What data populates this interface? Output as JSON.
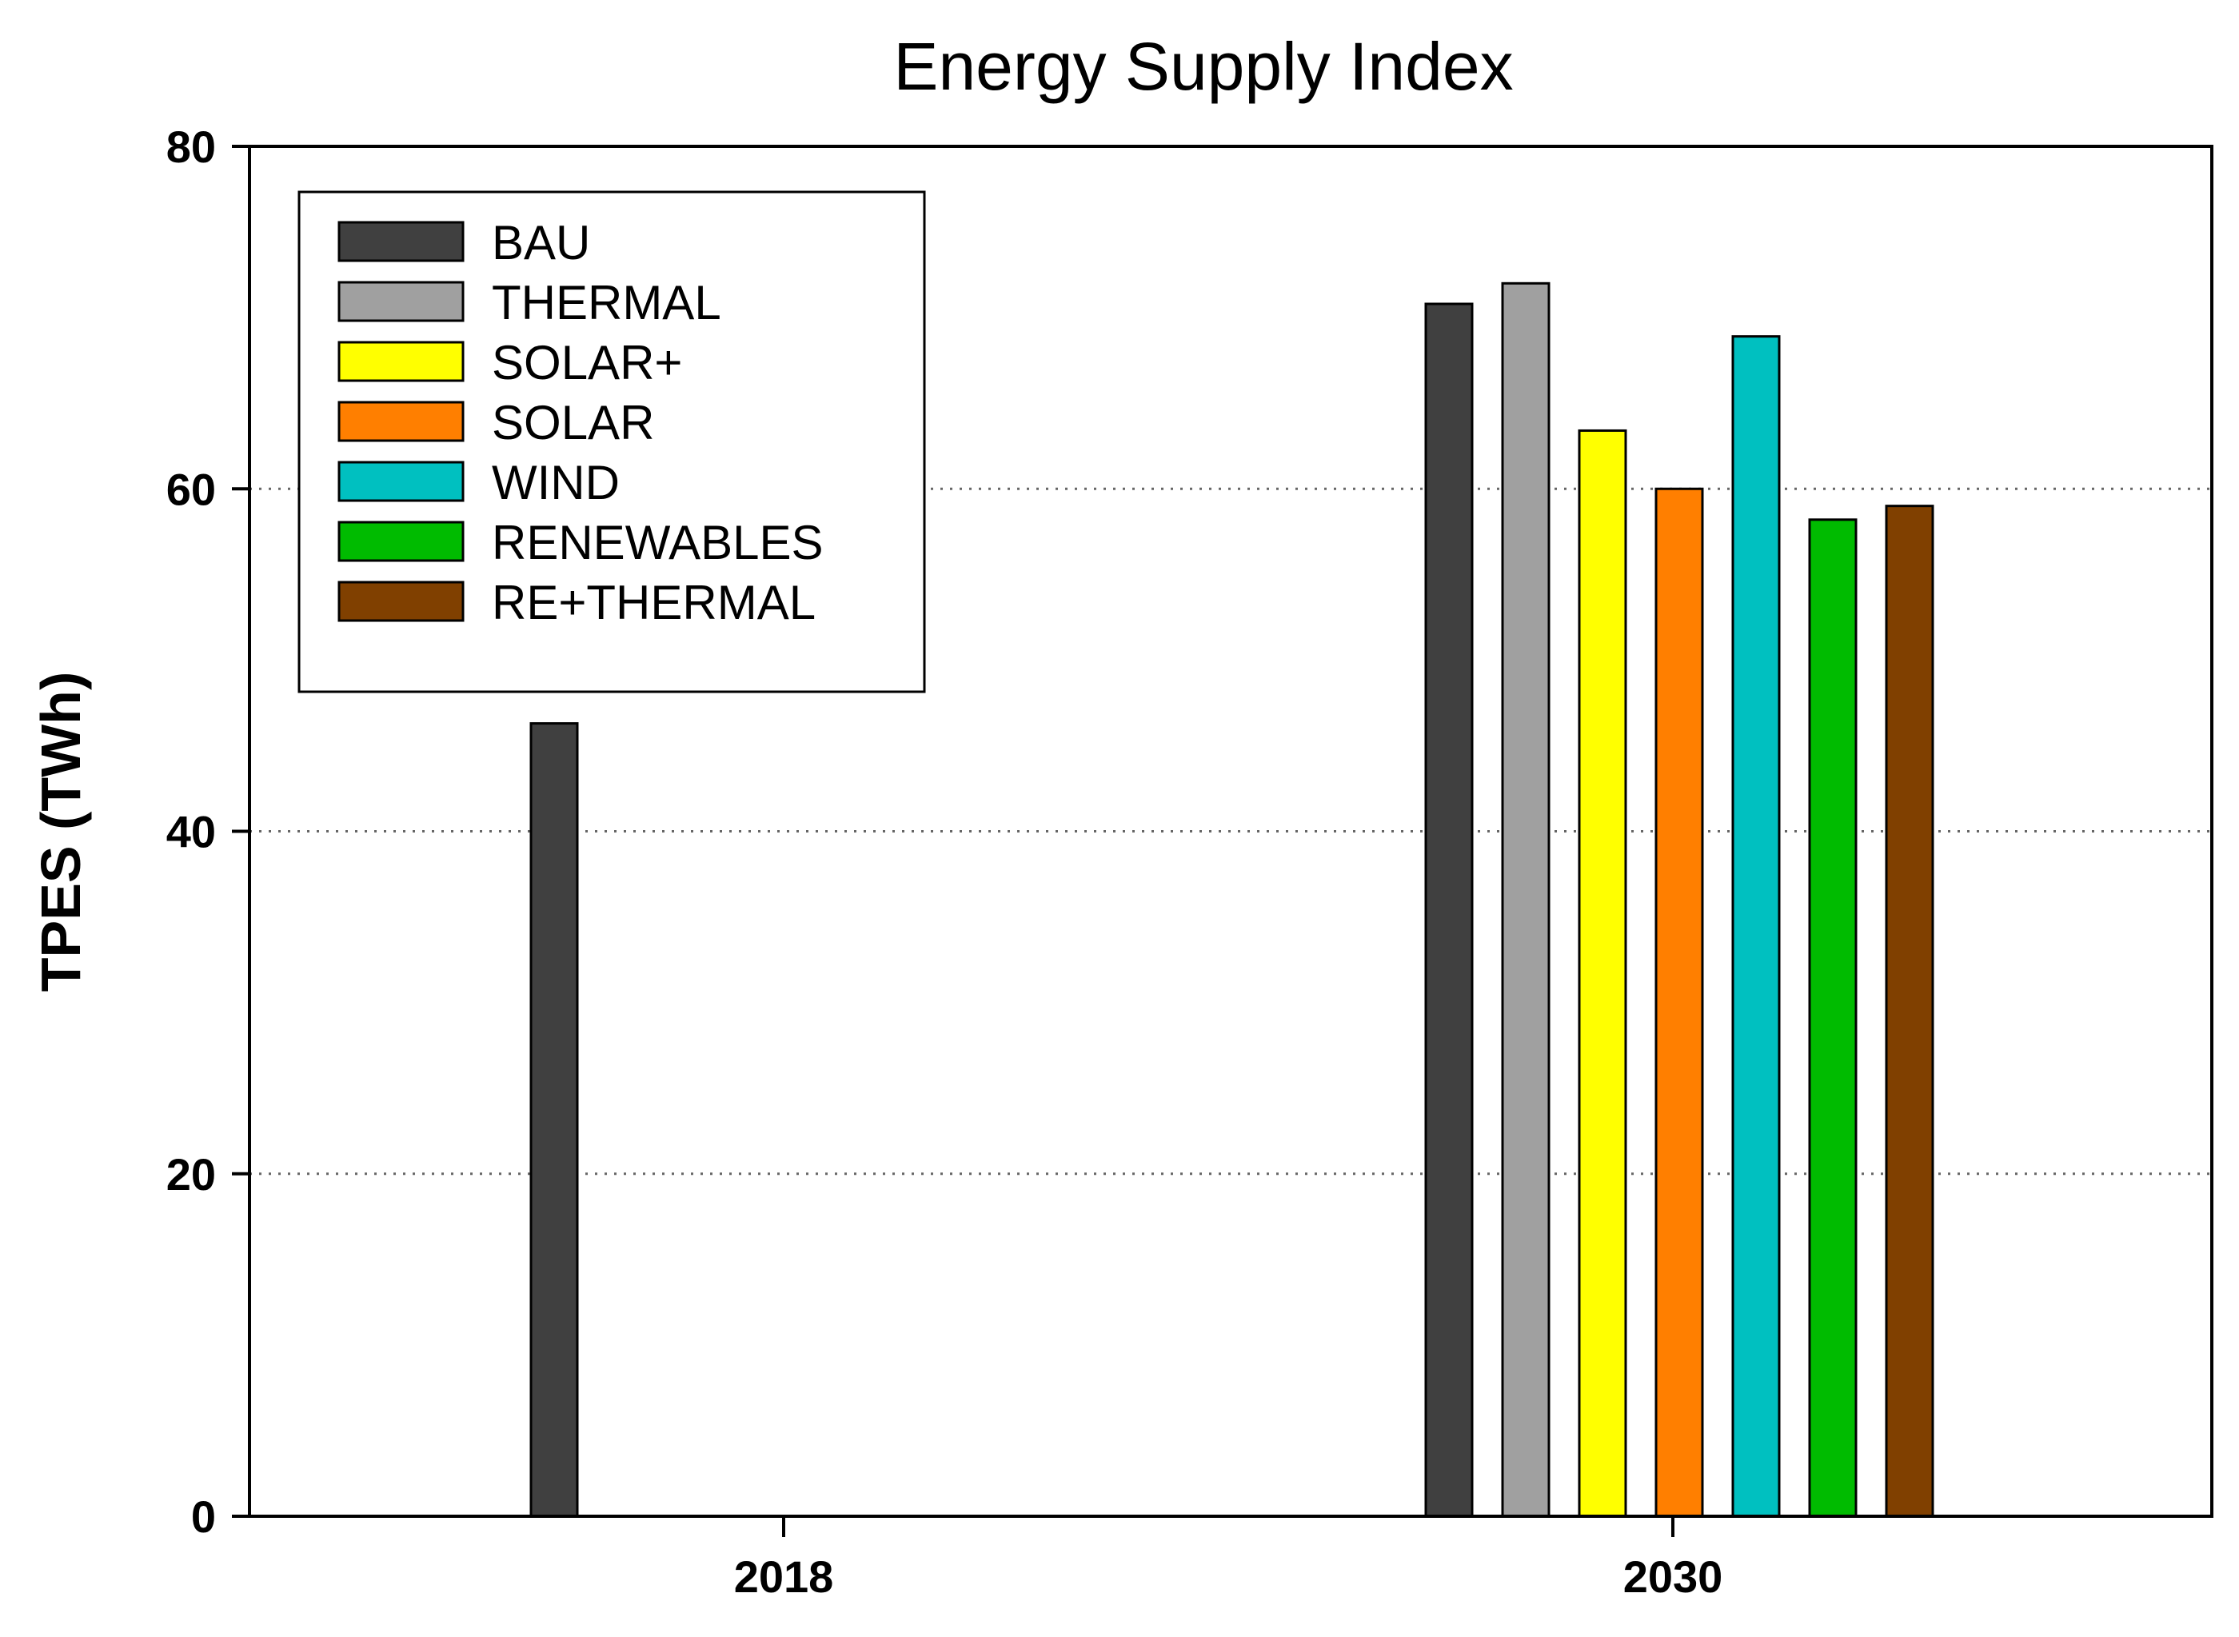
{
  "chart_data": {
    "type": "bar",
    "title": "Energy Supply Index",
    "xlabel": "",
    "ylabel": "TPES (TWh)",
    "ylim": [
      0,
      80
    ],
    "yticks": [
      0,
      20,
      40,
      60,
      80
    ],
    "grid": "horizontal dotted",
    "legend_position": "top-left",
    "categories": [
      "2018",
      "2030"
    ],
    "series": [
      {
        "name": "BAU",
        "color": "#404040",
        "values": [
          46.3,
          70.8
        ]
      },
      {
        "name": "THERMAL",
        "color": "#a0a0a0",
        "values": [
          null,
          72.0
        ]
      },
      {
        "name": "SOLAR+",
        "color": "#ffff00",
        "values": [
          null,
          63.4
        ]
      },
      {
        "name": "SOLAR",
        "color": "#ff7f00",
        "values": [
          null,
          60.0
        ]
      },
      {
        "name": "WIND",
        "color": "#00c0c0",
        "values": [
          null,
          68.9
        ]
      },
      {
        "name": "RENEWABLES",
        "color": "#00bb00",
        "values": [
          null,
          58.2
        ]
      },
      {
        "name": "RE+THERMAL",
        "color": "#804000",
        "values": [
          null,
          59.0
        ]
      }
    ]
  }
}
